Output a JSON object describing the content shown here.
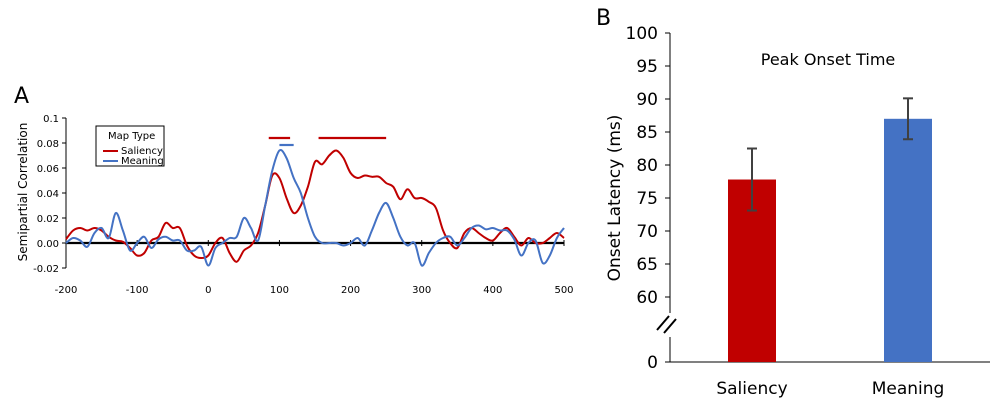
{
  "panels": {
    "a_letter": "A",
    "b_letter": "B"
  },
  "colors": {
    "saliency": "#c00000",
    "meaning": "#4472c4",
    "bar_saliency": "#c00000",
    "bar_meaning": "#4472c4",
    "error_bar": "#404040"
  },
  "chart_data": [
    {
      "type": "line",
      "panel": "A",
      "title": "",
      "xlabel": "",
      "ylabel": "Semipartial Correlation",
      "xlim": [
        -200,
        500
      ],
      "ylim": [
        -0.02,
        0.1
      ],
      "x_ticks": [
        "-200",
        "-100",
        "0",
        "100",
        "200",
        "300",
        "400",
        "500"
      ],
      "y_ticks": [
        "-0.02",
        "0.00",
        "0.02",
        "0.04",
        "0.06",
        "0.08",
        "0.1"
      ],
      "legend": {
        "title": "Map Type",
        "position": "top-left"
      },
      "significance_bars": [
        {
          "series": "Saliency",
          "x": [
            85,
            115
          ]
        },
        {
          "series": "Saliency",
          "x": [
            155,
            250
          ]
        },
        {
          "series": "Meaning",
          "x": [
            100,
            120
          ]
        }
      ],
      "series": [
        {
          "name": "Saliency",
          "x": [
            -200,
            -190,
            -180,
            -170,
            -160,
            -150,
            -140,
            -130,
            -120,
            -110,
            -100,
            -90,
            -80,
            -70,
            -60,
            -50,
            -40,
            -30,
            -20,
            -10,
            0,
            10,
            20,
            30,
            40,
            50,
            60,
            70,
            80,
            90,
            100,
            110,
            120,
            130,
            140,
            150,
            160,
            170,
            180,
            190,
            200,
            210,
            220,
            230,
            240,
            250,
            260,
            270,
            280,
            290,
            300,
            310,
            320,
            330,
            340,
            350,
            360,
            370,
            380,
            390,
            400,
            410,
            420,
            430,
            440,
            450,
            460,
            470,
            480,
            490,
            500
          ],
          "values": [
            0.003,
            0.01,
            0.012,
            0.01,
            0.012,
            0.01,
            0.005,
            0.002,
            0.001,
            -0.004,
            -0.01,
            -0.008,
            0.002,
            0.005,
            0.016,
            0.012,
            0.012,
            -0.002,
            -0.01,
            -0.012,
            -0.01,
            0.0,
            0.004,
            -0.008,
            -0.015,
            -0.006,
            -0.002,
            0.008,
            0.03,
            0.054,
            0.052,
            0.036,
            0.024,
            0.03,
            0.045,
            0.065,
            0.063,
            0.07,
            0.074,
            0.068,
            0.056,
            0.052,
            0.054,
            0.053,
            0.053,
            0.048,
            0.045,
            0.035,
            0.043,
            0.036,
            0.036,
            0.033,
            0.028,
            0.01,
            0.0,
            -0.004,
            0.008,
            0.012,
            0.008,
            0.004,
            0.002,
            0.008,
            0.012,
            0.005,
            -0.002,
            0.004,
            0.0,
            0.0,
            0.004,
            0.008,
            0.004
          ]
        },
        {
          "name": "Meaning",
          "x": [
            -200,
            -190,
            -180,
            -170,
            -160,
            -150,
            -140,
            -130,
            -120,
            -110,
            -100,
            -90,
            -80,
            -70,
            -60,
            -50,
            -40,
            -30,
            -20,
            -10,
            0,
            10,
            20,
            30,
            40,
            50,
            60,
            70,
            80,
            90,
            100,
            110,
            120,
            130,
            140,
            150,
            160,
            170,
            180,
            190,
            200,
            210,
            220,
            230,
            240,
            250,
            260,
            270,
            280,
            290,
            300,
            310,
            320,
            330,
            340,
            350,
            360,
            370,
            380,
            390,
            400,
            410,
            420,
            430,
            440,
            450,
            460,
            470,
            480,
            490,
            500
          ],
          "values": [
            0.0,
            0.004,
            0.002,
            -0.003,
            0.008,
            0.012,
            0.004,
            0.024,
            0.01,
            -0.006,
            0.0,
            0.005,
            -0.004,
            0.003,
            0.005,
            0.002,
            0.002,
            -0.006,
            -0.006,
            -0.003,
            -0.018,
            -0.004,
            0.0,
            0.004,
            0.005,
            0.02,
            0.012,
            0.002,
            0.03,
            0.058,
            0.074,
            0.068,
            0.052,
            0.04,
            0.02,
            0.005,
            0.0,
            0.0,
            0.0,
            -0.002,
            0.0,
            0.004,
            -0.002,
            0.01,
            0.024,
            0.032,
            0.02,
            0.005,
            -0.002,
            0.0,
            -0.018,
            -0.008,
            0.0,
            0.004,
            0.005,
            -0.002,
            0.004,
            0.012,
            0.014,
            0.011,
            0.012,
            0.01,
            0.01,
            0.003,
            -0.01,
            0.0,
            0.002,
            -0.016,
            -0.01,
            0.004,
            0.012
          ]
        }
      ]
    },
    {
      "type": "bar",
      "panel": "B",
      "title": "Peak Onset Time",
      "xlabel": "",
      "ylabel": "Onset Latency (ms)",
      "y_ticks": [
        "0",
        "60",
        "65",
        "70",
        "75",
        "80",
        "85",
        "90",
        "95",
        "100"
      ],
      "axis_break": true,
      "ylim": [
        0,
        100
      ],
      "categories": [
        "Saliency",
        "Meaning"
      ],
      "values": [
        77.8,
        87.0
      ],
      "error": [
        4.7,
        3.1
      ]
    }
  ]
}
